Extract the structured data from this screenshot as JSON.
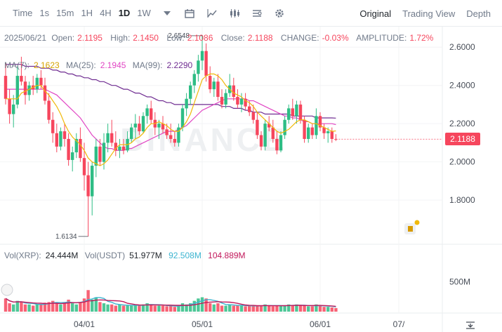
{
  "toolbar": {
    "time_label": "Time",
    "intervals": [
      "1s",
      "15m",
      "1H",
      "4H",
      "1D",
      "1W"
    ],
    "active_interval": "1D",
    "views": [
      "Original",
      "Trading View",
      "Depth"
    ],
    "active_view": "Original"
  },
  "info": {
    "date": "2025/06/21",
    "open_label": "Open:",
    "open": "2.1195",
    "high_label": "High:",
    "high": "2.1450",
    "low_label": "Low:",
    "low": "2.1086",
    "close_label": "Close:",
    "close": "2.1188",
    "change_label": "CHANGE:",
    "change": "-0.03%",
    "amplitude_label": "AMPLITUDE:",
    "amplitude": "1.72%"
  },
  "ma": {
    "ma7_label": "MA(7):",
    "ma7": "2.1623",
    "ma25_label": "MA(25):",
    "ma25": "2.1945",
    "ma99_label": "MA(99):",
    "ma99": "2.2290"
  },
  "volume": {
    "vol_label": "Vol(XRP):",
    "vol_value": "24.444M",
    "usdt_label": "Vol(USDT)",
    "usdt_value": "51.977M",
    "ma1": "92.508M",
    "ma2": "104.889M"
  },
  "colors": {
    "up": "#2ebd85",
    "down": "#f6465d",
    "ma7": "#f0b90b",
    "ma25": "#e146c4",
    "ma99": "#6f2c91",
    "volma1": "#3cb4d0",
    "volma2": "#c2185b"
  },
  "chart_data": {
    "type": "candlestick",
    "symbol": "XRP/USDT",
    "interval": "1D",
    "y_ticks": [
      "2.6000",
      "2.4000",
      "2.2000",
      "2.0000",
      "1.8000"
    ],
    "ylim": [
      1.58,
      2.7
    ],
    "x_ticks": [
      "04/01",
      "05/01",
      "06/01",
      "07/"
    ],
    "last_price": "2.1188",
    "max_marker": "2.6548",
    "min_marker": "1.6134",
    "volume_tick": "500M",
    "candles": [
      [
        2.45,
        2.52,
        2.3,
        2.33
      ],
      [
        2.33,
        2.38,
        2.2,
        2.25
      ],
      [
        2.25,
        2.35,
        2.18,
        2.3
      ],
      [
        2.3,
        2.5,
        2.28,
        2.45
      ],
      [
        2.45,
        2.55,
        2.4,
        2.42
      ],
      [
        2.42,
        2.45,
        2.3,
        2.35
      ],
      [
        2.35,
        2.42,
        2.32,
        2.4
      ],
      [
        2.4,
        2.45,
        2.35,
        2.38
      ],
      [
        2.38,
        2.46,
        2.36,
        2.44
      ],
      [
        2.44,
        2.48,
        2.38,
        2.4
      ],
      [
        2.4,
        2.44,
        2.3,
        2.32
      ],
      [
        2.32,
        2.36,
        2.2,
        2.22
      ],
      [
        2.22,
        2.26,
        2.1,
        2.15
      ],
      [
        2.15,
        2.2,
        2.05,
        2.08
      ],
      [
        2.08,
        2.18,
        2.06,
        2.16
      ],
      [
        2.16,
        2.2,
        2.08,
        2.12
      ],
      [
        2.12,
        2.15,
        1.98,
        2.01
      ],
      [
        2.01,
        2.08,
        1.95,
        2.05
      ],
      [
        2.05,
        2.15,
        2.02,
        2.12
      ],
      [
        2.12,
        2.18,
        2.0,
        2.02
      ],
      [
        2.02,
        2.1,
        1.85,
        1.93
      ],
      [
        1.93,
        2.0,
        1.61,
        1.82
      ],
      [
        1.82,
        2.0,
        1.72,
        1.98
      ],
      [
        1.98,
        2.12,
        1.92,
        2.08
      ],
      [
        2.08,
        2.12,
        1.98,
        2.0
      ],
      [
        2.0,
        2.15,
        1.96,
        2.1
      ],
      [
        2.1,
        2.2,
        2.05,
        2.15
      ],
      [
        2.15,
        2.22,
        2.08,
        2.1
      ],
      [
        2.1,
        2.16,
        2.03,
        2.06
      ],
      [
        2.06,
        2.12,
        2.02,
        2.08
      ],
      [
        2.08,
        2.12,
        2.04,
        2.06
      ],
      [
        2.06,
        2.16,
        2.05,
        2.12
      ],
      [
        2.12,
        2.2,
        2.1,
        2.18
      ],
      [
        2.18,
        2.25,
        2.12,
        2.2
      ],
      [
        2.2,
        2.24,
        2.14,
        2.16
      ],
      [
        2.16,
        2.26,
        2.15,
        2.24
      ],
      [
        2.24,
        2.3,
        2.2,
        2.28
      ],
      [
        2.28,
        2.32,
        2.2,
        2.22
      ],
      [
        2.22,
        2.26,
        2.14,
        2.18
      ],
      [
        2.18,
        2.22,
        2.12,
        2.2
      ],
      [
        2.2,
        2.24,
        2.15,
        2.17
      ],
      [
        2.17,
        2.2,
        2.12,
        2.14
      ],
      [
        2.14,
        2.2,
        2.1,
        2.12
      ],
      [
        2.12,
        2.16,
        2.08,
        2.1
      ],
      [
        2.1,
        2.2,
        2.08,
        2.18
      ],
      [
        2.18,
        2.3,
        2.16,
        2.28
      ],
      [
        2.28,
        2.36,
        2.24,
        2.33
      ],
      [
        2.33,
        2.42,
        2.3,
        2.4
      ],
      [
        2.4,
        2.48,
        2.36,
        2.46
      ],
      [
        2.46,
        2.56,
        2.42,
        2.53
      ],
      [
        2.53,
        2.66,
        2.48,
        2.58
      ],
      [
        2.58,
        2.62,
        2.42,
        2.45
      ],
      [
        2.45,
        2.5,
        2.36,
        2.38
      ],
      [
        2.38,
        2.44,
        2.34,
        2.42
      ],
      [
        2.42,
        2.46,
        2.32,
        2.34
      ],
      [
        2.34,
        2.38,
        2.28,
        2.3
      ],
      [
        2.3,
        2.38,
        2.28,
        2.36
      ],
      [
        2.36,
        2.46,
        2.34,
        2.4
      ],
      [
        2.4,
        2.44,
        2.32,
        2.34
      ],
      [
        2.34,
        2.38,
        2.28,
        2.3
      ],
      [
        2.3,
        2.36,
        2.26,
        2.33
      ],
      [
        2.33,
        2.36,
        2.27,
        2.29
      ],
      [
        2.29,
        2.32,
        2.24,
        2.26
      ],
      [
        2.26,
        2.3,
        2.2,
        2.22
      ],
      [
        2.22,
        2.26,
        2.12,
        2.14
      ],
      [
        2.14,
        2.16,
        2.06,
        2.08
      ],
      [
        2.08,
        2.22,
        2.06,
        2.2
      ],
      [
        2.2,
        2.24,
        2.16,
        2.18
      ],
      [
        2.18,
        2.22,
        2.1,
        2.12
      ],
      [
        2.12,
        2.16,
        2.04,
        2.06
      ],
      [
        2.06,
        2.16,
        2.05,
        2.14
      ],
      [
        2.14,
        2.24,
        2.12,
        2.22
      ],
      [
        2.22,
        2.3,
        2.2,
        2.28
      ],
      [
        2.28,
        2.33,
        2.22,
        2.24
      ],
      [
        2.24,
        2.32,
        2.2,
        2.3
      ],
      [
        2.3,
        2.32,
        2.2,
        2.22
      ],
      [
        2.22,
        2.24,
        2.1,
        2.12
      ],
      [
        2.12,
        2.2,
        2.1,
        2.18
      ],
      [
        2.18,
        2.2,
        2.12,
        2.14
      ],
      [
        2.14,
        2.28,
        2.12,
        2.24
      ],
      [
        2.24,
        2.26,
        2.16,
        2.18
      ],
      [
        2.18,
        2.2,
        2.12,
        2.15
      ],
      [
        2.15,
        2.18,
        2.1,
        2.16
      ],
      [
        2.16,
        2.18,
        2.1,
        2.12
      ],
      [
        2.12,
        2.145,
        2.109,
        2.119
      ]
    ],
    "ma7": [
      2.33,
      2.33,
      2.33,
      2.33,
      2.36,
      2.37,
      2.38,
      2.39,
      2.4,
      2.4,
      2.37,
      2.35,
      2.32,
      2.29,
      2.25,
      2.2,
      2.16,
      2.13,
      2.11,
      2.09,
      2.06,
      2.02,
      2.0,
      1.99,
      1.98,
      1.99,
      2.01,
      2.04,
      2.07,
      2.09,
      2.09,
      2.09,
      2.1,
      2.12,
      2.13,
      2.15,
      2.18,
      2.2,
      2.2,
      2.21,
      2.2,
      2.19,
      2.17,
      2.16,
      2.16,
      2.18,
      2.21,
      2.25,
      2.31,
      2.37,
      2.43,
      2.45,
      2.46,
      2.46,
      2.45,
      2.43,
      2.4,
      2.38,
      2.36,
      2.35,
      2.34,
      2.32,
      2.31,
      2.29,
      2.26,
      2.24,
      2.22,
      2.2,
      2.18,
      2.16,
      2.15,
      2.16,
      2.17,
      2.19,
      2.21,
      2.22,
      2.22,
      2.21,
      2.2,
      2.2,
      2.19,
      2.18,
      2.17,
      2.16,
      2.162
    ],
    "ma25": [
      2.38,
      2.38,
      2.38,
      2.38,
      2.38,
      2.38,
      2.38,
      2.38,
      2.38,
      2.38,
      2.38,
      2.37,
      2.36,
      2.35,
      2.33,
      2.31,
      2.29,
      2.27,
      2.25,
      2.23,
      2.2,
      2.17,
      2.14,
      2.12,
      2.1,
      2.08,
      2.07,
      2.07,
      2.06,
      2.06,
      2.06,
      2.07,
      2.07,
      2.08,
      2.09,
      2.1,
      2.11,
      2.12,
      2.13,
      2.14,
      2.15,
      2.16,
      2.16,
      2.16,
      2.17,
      2.18,
      2.19,
      2.21,
      2.23,
      2.25,
      2.27,
      2.28,
      2.29,
      2.3,
      2.31,
      2.32,
      2.33,
      2.33,
      2.33,
      2.33,
      2.33,
      2.33,
      2.32,
      2.32,
      2.31,
      2.3,
      2.29,
      2.28,
      2.27,
      2.26,
      2.25,
      2.24,
      2.24,
      2.23,
      2.23,
      2.22,
      2.21,
      2.21,
      2.2,
      2.2,
      2.2,
      2.2,
      2.2,
      2.2,
      2.195
    ],
    "ma99": [
      2.51,
      2.51,
      2.51,
      2.51,
      2.51,
      2.5,
      2.5,
      2.5,
      2.5,
      2.49,
      2.49,
      2.49,
      2.48,
      2.48,
      2.47,
      2.47,
      2.46,
      2.46,
      2.45,
      2.45,
      2.44,
      2.44,
      2.43,
      2.43,
      2.42,
      2.42,
      2.41,
      2.4,
      2.4,
      2.39,
      2.38,
      2.38,
      2.37,
      2.36,
      2.36,
      2.35,
      2.34,
      2.34,
      2.33,
      2.32,
      2.32,
      2.31,
      2.31,
      2.3,
      2.3,
      2.3,
      2.3,
      2.3,
      2.3,
      2.3,
      2.3,
      2.3,
      2.3,
      2.3,
      2.3,
      2.29,
      2.29,
      2.29,
      2.28,
      2.28,
      2.28,
      2.27,
      2.27,
      2.26,
      2.26,
      2.26,
      2.25,
      2.25,
      2.25,
      2.25,
      2.25,
      2.25,
      2.25,
      2.24,
      2.24,
      2.24,
      2.24,
      2.24,
      2.24,
      2.23,
      2.23,
      2.23,
      2.23,
      2.23,
      2.229
    ],
    "volumes": [
      0.22,
      0.14,
      0.12,
      0.18,
      0.16,
      0.12,
      0.12,
      0.1,
      0.12,
      0.13,
      0.15,
      0.16,
      0.18,
      0.14,
      0.12,
      0.16,
      0.2,
      0.14,
      0.12,
      0.16,
      0.22,
      0.36,
      0.2,
      0.24,
      0.16,
      0.14,
      0.12,
      0.12,
      0.1,
      0.12,
      0.1,
      0.1,
      0.1,
      0.12,
      0.1,
      0.12,
      0.14,
      0.12,
      0.1,
      0.1,
      0.1,
      0.09,
      0.1,
      0.08,
      0.1,
      0.14,
      0.12,
      0.14,
      0.18,
      0.22,
      0.24,
      0.22,
      0.14,
      0.12,
      0.14,
      0.1,
      0.1,
      0.12,
      0.1,
      0.1,
      0.1,
      0.09,
      0.1,
      0.09,
      0.1,
      0.1,
      0.12,
      0.1,
      0.09,
      0.1,
      0.1,
      0.1,
      0.12,
      0.1,
      0.12,
      0.1,
      0.1,
      0.09,
      0.09,
      0.12,
      0.1,
      0.08,
      0.08,
      0.07,
      0.06
    ],
    "volume_ylim": [
      0,
      0.75
    ],
    "x_tick_index": [
      20,
      50,
      80,
      100
    ]
  }
}
